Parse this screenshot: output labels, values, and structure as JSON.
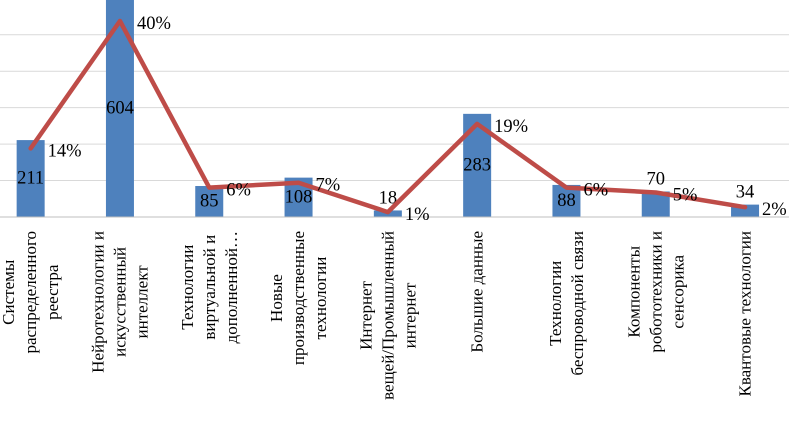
{
  "chart_data": {
    "type": "bar",
    "subtype": "combo-bar-line",
    "title": "",
    "legend": "none",
    "background": "#FFFFFF",
    "gridline_color": "#D9D9D9",
    "axis_line_color": "#BFBFBF",
    "categories": [
      "Системы распределенного реестра",
      "Нейротехнологии и искусственный интеллект",
      "Технологии виртуальной и дополненной…",
      "Новые производственные технологии",
      "Интернет вещей/Промышленный интернет",
      "Большие данные",
      "Технологии беспроводной связи",
      "Компоненты робототехники и сенсорика",
      "Квантовые технологии"
    ],
    "category_label_lines": [
      [
        "Системы",
        "распределенного",
        "реестра"
      ],
      [
        "Нейротехнологии и",
        "искусственный",
        "интеллект"
      ],
      [
        "Технологии",
        "виртуальной и",
        "дополненной…"
      ],
      [
        "Новые",
        "производственные",
        "технологии"
      ],
      [
        "Интернет",
        "вещей/Промышленный",
        "интернет"
      ],
      [
        "Большие данные"
      ],
      [
        "Технологии",
        "беспроводной связи"
      ],
      [
        "Компоненты",
        "робототехники и",
        "сенсорика"
      ],
      [
        "Квантовые технологии"
      ]
    ],
    "series": [
      {
        "name": "count-bars",
        "type": "bar",
        "color": "#4E81BD",
        "values": [
          211,
          604,
          85,
          108,
          18,
          283,
          88,
          70,
          34
        ],
        "data_labels": [
          "211",
          "604",
          "85",
          "108",
          "18",
          "283",
          "88",
          "70",
          "34"
        ]
      },
      {
        "name": "share-percent-line",
        "type": "line",
        "color": "#BE4C48",
        "values": [
          14,
          40,
          6,
          7,
          1,
          19,
          6,
          5,
          2
        ],
        "data_labels": [
          "14%",
          "40%",
          "6%",
          "7%",
          "1%",
          "19%",
          "6%",
          "5%",
          "2%"
        ]
      }
    ],
    "primary_axis": {
      "min": 0,
      "grid_step": 100,
      "grid_max": 500,
      "tick_labels_visible": false
    },
    "secondary_axis": {
      "unit": "percent",
      "tick_labels_visible": false
    }
  }
}
